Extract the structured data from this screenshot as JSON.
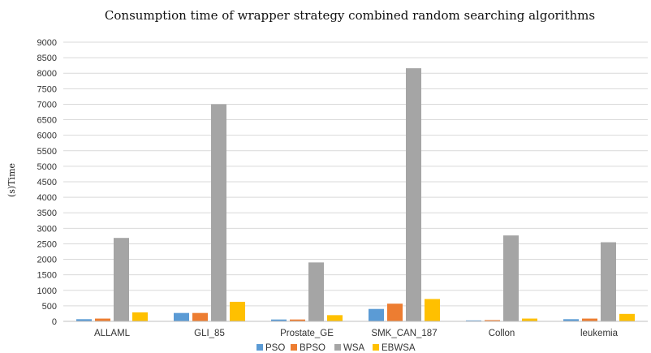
{
  "chart_data": {
    "type": "bar",
    "title": "Consumption time of wrapper strategy combined random searching algorithms",
    "ylabel": "(s)Time",
    "xlabel": "",
    "ylim": [
      0,
      9000
    ],
    "ytick_step": 500,
    "grid": true,
    "legend_position": "bottom",
    "categories": [
      "ALLAML",
      "GLI_85",
      "Prostate_GE",
      "SMK_CAN_187",
      "Collon",
      "leukemia"
    ],
    "series": [
      {
        "name": "PSO",
        "color": "#5b9bd5",
        "values": [
          70,
          270,
          60,
          400,
          30,
          70
        ]
      },
      {
        "name": "BPSO",
        "color": "#ed7d31",
        "values": [
          90,
          270,
          60,
          570,
          40,
          90
        ]
      },
      {
        "name": "WSA",
        "color": "#a5a5a5",
        "values": [
          2690,
          7000,
          1900,
          8160,
          2770,
          2550
        ]
      },
      {
        "name": "EBWSA",
        "color": "#ffc000",
        "values": [
          290,
          630,
          200,
          720,
          90,
          240
        ]
      }
    ]
  }
}
